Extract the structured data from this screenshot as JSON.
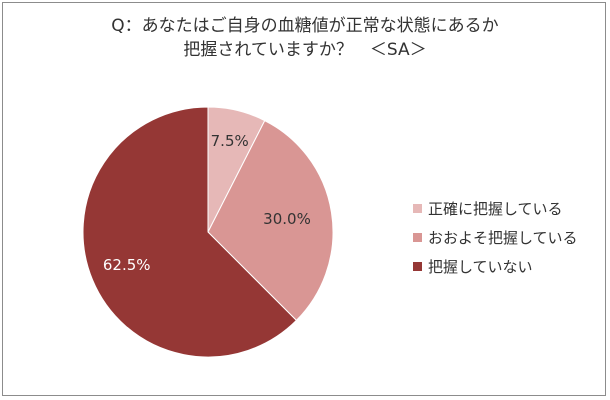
{
  "colors": {
    "slice_1": "#e6b8b7",
    "slice_2": "#d99694",
    "slice_3": "#953735",
    "label_dark": "#333333",
    "label_light": "#ffffff"
  },
  "chart_data": {
    "type": "pie",
    "title_lines": [
      "Q：あなたはご自身の血糖値が正常な状態にあるか",
      "把握されていますか？　＜SA＞"
    ],
    "start_angle_deg": 0,
    "direction": "clockwise",
    "legend_position": "right",
    "slices": [
      {
        "label": "正確に把握している",
        "value": 7.5,
        "display": "7.5%"
      },
      {
        "label": "おおよそ把握している",
        "value": 30.0,
        "display": "30.0%"
      },
      {
        "label": "把握していない",
        "value": 62.5,
        "display": "62.5%"
      }
    ]
  }
}
